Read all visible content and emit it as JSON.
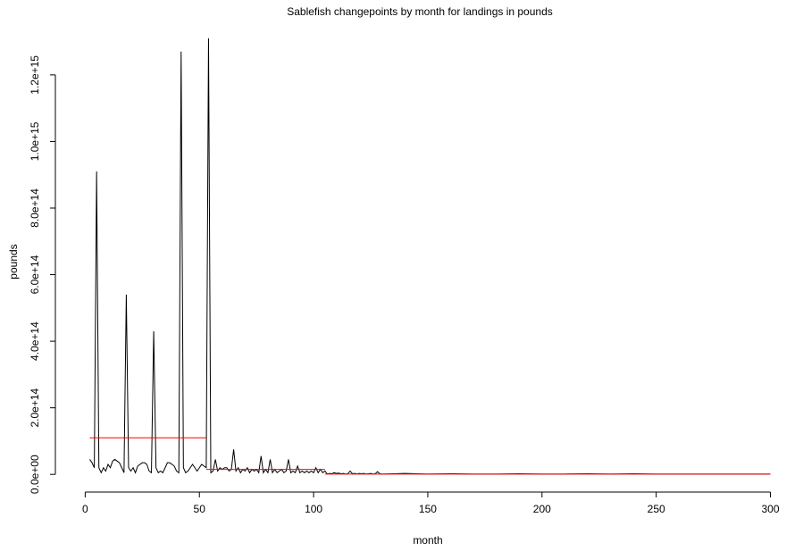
{
  "chart_data": {
    "type": "line",
    "title": "Sablefish changepoints by month for landings in pounds",
    "xlabel": "month",
    "ylabel": "pounds",
    "color": "#000000",
    "x": [
      2,
      3,
      4,
      5,
      6,
      7,
      8,
      9,
      10,
      11,
      12,
      13,
      14,
      15,
      16,
      17,
      18,
      19,
      20,
      21,
      22,
      23,
      24,
      25,
      26,
      27,
      28,
      29,
      30,
      31,
      32,
      33,
      34,
      35,
      36,
      37,
      38,
      39,
      40,
      41,
      42,
      43,
      44,
      45,
      46,
      47,
      48,
      49,
      50,
      51,
      52,
      53,
      54,
      55,
      56,
      57,
      58,
      59,
      60,
      61,
      62,
      63,
      64,
      65,
      66,
      67,
      68,
      69,
      70,
      71,
      72,
      73,
      74,
      75,
      76,
      77,
      78,
      79,
      80,
      81,
      82,
      83,
      84,
      85,
      86,
      87,
      88,
      89,
      90,
      91,
      92,
      93,
      94,
      95,
      96,
      97,
      98,
      99,
      100,
      101,
      102,
      103,
      104,
      105,
      106,
      107,
      108,
      109,
      110,
      111,
      112,
      113,
      114,
      115,
      116,
      117,
      118,
      119,
      120,
      121,
      122,
      123,
      124,
      125,
      126,
      127,
      128,
      129,
      130,
      140,
      150,
      160,
      170,
      180,
      190,
      200,
      210,
      220,
      230,
      240,
      250,
      260,
      270,
      280,
      290,
      300
    ],
    "values": [
      45000000000000.0,
      35000000000000.0,
      20000000000000.0,
      910000000000000.0,
      20000000000000.0,
      5000000000000.0,
      20000000000000.0,
      10000000000000.0,
      30000000000000.0,
      20000000000000.0,
      40000000000000.0,
      45000000000000.0,
      40000000000000.0,
      35000000000000.0,
      20000000000000.0,
      5000000000000.0,
      540000000000000.0,
      20000000000000.0,
      10000000000000.0,
      20000000000000.0,
      5000000000000.0,
      25000000000000.0,
      30000000000000.0,
      35000000000000.0,
      35000000000000.0,
      30000000000000.0,
      10000000000000.0,
      5000000000000.0,
      430000000000000.0,
      20000000000000.0,
      5000000000000.0,
      10000000000000.0,
      5000000000000.0,
      20000000000000.0,
      35000000000000.0,
      35000000000000.0,
      30000000000000.0,
      25000000000000.0,
      10000000000000.0,
      5000000000000.0,
      1270000000000000.0,
      20000000000000.0,
      5000000000000.0,
      10000000000000.0,
      20000000000000.0,
      30000000000000.0,
      20000000000000.0,
      10000000000000.0,
      20000000000000.0,
      30000000000000.0,
      25000000000000.0,
      20000000000000.0,
      1310000000000000.0,
      5000000000000.0,
      10000000000000.0,
      45000000000000.0,
      10000000000000.0,
      20000000000000.0,
      15000000000000.0,
      20000000000000.0,
      20000000000000.0,
      10000000000000.0,
      15000000000000.0,
      75000000000000.0,
      10000000000000.0,
      20000000000000.0,
      5000000000000.0,
      15000000000000.0,
      10000000000000.0,
      20000000000000.0,
      5000000000000.0,
      15000000000000.0,
      10000000000000.0,
      15000000000000.0,
      5000000000000.0,
      55000000000000.0,
      5000000000000.0,
      15000000000000.0,
      5000000000000.0,
      45000000000000.0,
      5000000000000.0,
      15000000000000.0,
      5000000000000.0,
      10000000000000.0,
      15000000000000.0,
      5000000000000.0,
      10000000000000.0,
      45000000000000.0,
      5000000000000.0,
      10000000000000.0,
      5000000000000.0,
      25000000000000.0,
      5000000000000.0,
      10000000000000.0,
      5000000000000.0,
      10000000000000.0,
      5000000000000.0,
      10000000000000.0,
      5000000000000.0,
      20000000000000.0,
      5000000000000.0,
      15000000000000.0,
      5000000000000.0,
      10000000000000.0,
      1000000000000.0,
      3000000000000.0,
      2000000000000.0,
      5000000000000.0,
      3000000000000.0,
      4000000000000.0,
      2000000000000.0,
      3000000000000.0,
      1000000000000.0,
      2000000000000.0,
      10000000000000.0,
      2000000000000.0,
      3000000000000.0,
      1000000000000.0,
      3000000000000.0,
      2000000000000.0,
      3000000000000.0,
      1000000000000.0,
      2000000000000.0,
      3000000000000.0,
      1000000000000.0,
      2000000000000.0,
      8000000000000.0,
      2000000000000.0,
      1000000000000.0,
      3000000000000.0,
      1000000000000.0,
      2000000000000.0,
      1000000000000.0,
      1000000000000.0,
      2000000000000.0,
      1000000000000.0,
      1000000000000.0,
      2000000000000.0,
      1000000000000.0,
      2000000000000.0,
      1000000000000.0,
      1000000000000.0,
      1000000000000.0,
      1000000000000.0,
      1000000000000.0,
      1000000000000.0
    ],
    "changepoints": [
      {
        "start": 2,
        "end": 53,
        "mean": 110000000000000.0
      },
      {
        "start": 53,
        "end": 105,
        "mean": 15000000000000.0
      },
      {
        "start": 105,
        "end": 300,
        "mean": 1000000000000.0
      }
    ],
    "changepoint_color": "#ff0000",
    "xlim": [
      -9.92,
      311.92
    ],
    "ylim": [
      -37000000000000.0,
      1315000000000000.0
    ],
    "xticks": [
      0,
      50,
      100,
      150,
      200,
      250,
      300
    ],
    "yticks": [
      {
        "value": 0,
        "label": "0.0e+00"
      },
      {
        "value": 200000000000000.0,
        "label": "2.0e+14"
      },
      {
        "value": 400000000000000.0,
        "label": "4.0e+14"
      },
      {
        "value": 600000000000000.0,
        "label": "6.0e+14"
      },
      {
        "value": 800000000000000.0,
        "label": "8.0e+14"
      },
      {
        "value": 1000000000000000.0,
        "label": "1.0e+15"
      },
      {
        "value": 1200000000000000.0,
        "label": "1.2e+15"
      }
    ]
  }
}
